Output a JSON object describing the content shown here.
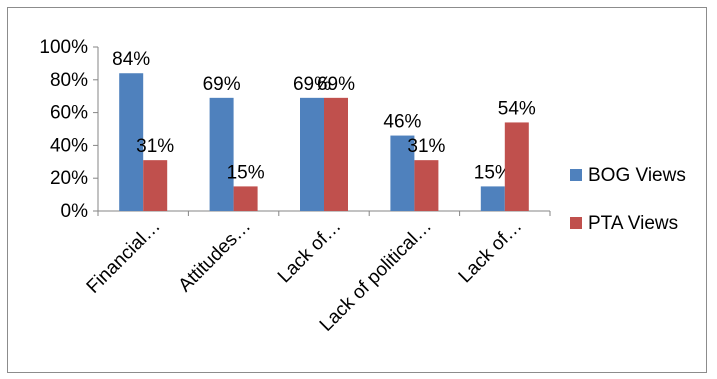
{
  "chart_data": {
    "type": "bar",
    "title": "",
    "xlabel": "",
    "ylabel": "",
    "categories": [
      "Financial…",
      "Attitudes…",
      "Lack of…",
      "Lack of political…",
      "Lack of…"
    ],
    "series": [
      {
        "name": "BOG Views",
        "color": "#4F81BD",
        "values": [
          84,
          69,
          69,
          46,
          15
        ],
        "labels": [
          "84%",
          "69%",
          "69%",
          "46%",
          "15%"
        ]
      },
      {
        "name": "PTA Views",
        "color": "#C0504D",
        "values": [
          31,
          15,
          69,
          31,
          54
        ],
        "labels": [
          "31%",
          "15%",
          "69%",
          "31%",
          "54%"
        ]
      }
    ],
    "ylim": [
      0,
      100
    ],
    "yticks": [
      "0%",
      "20%",
      "40%",
      "60%",
      "80%",
      "100%"
    ],
    "grid": false,
    "legend_position": "right"
  }
}
